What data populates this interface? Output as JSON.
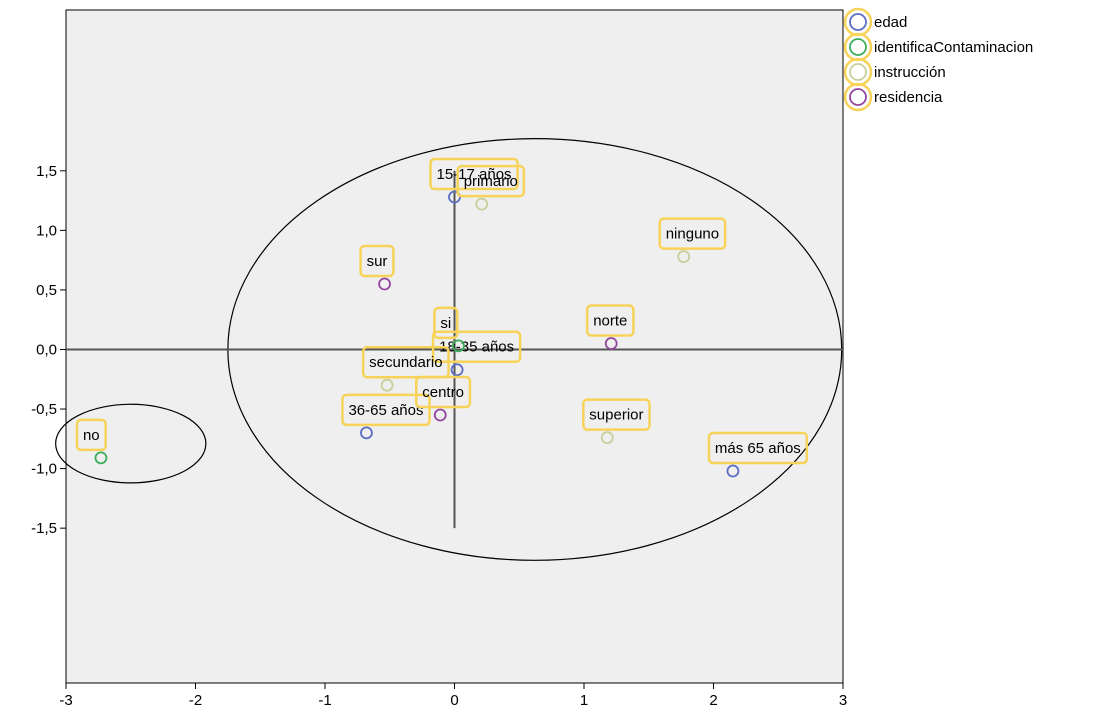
{
  "chart_data": {
    "type": "scatter",
    "title": "",
    "xlabel": "",
    "ylabel": "",
    "xlim": [
      -3,
      3
    ],
    "ylim": [
      -2.8,
      2.85
    ],
    "xticks": [
      -3,
      -2,
      -1,
      0,
      1,
      2,
      3
    ],
    "xtick_labels": [
      "-3",
      "-2",
      "-1",
      "0",
      "1",
      "2",
      "3"
    ],
    "yticks": [
      1.5,
      1.0,
      0.5,
      0.0,
      -0.5,
      -1.0,
      -1.5
    ],
    "ytick_labels": [
      "1,5",
      "1,0",
      "0,5",
      "0,0",
      "-0,5",
      "-1,0",
      "-1,5"
    ],
    "grid": false,
    "legend_position": "top-right",
    "colors": {
      "edad": "#5b6cc4",
      "identificaContaminacion": "#3cae5c",
      "instruccion": "#c8cf9c",
      "residencia": "#93489f",
      "label_border": "#f7d35a",
      "plot_background": "#efefef"
    },
    "series": [
      {
        "name": "edad",
        "points": [
          {
            "label": "15-17 años",
            "x": 0.0,
            "y": 1.28
          },
          {
            "label": "18-35 años",
            "x": 0.02,
            "y": -0.17
          },
          {
            "label": "36-65 años",
            "x": -0.68,
            "y": -0.7
          },
          {
            "label": "más 65 años",
            "x": 2.15,
            "y": -1.02
          }
        ]
      },
      {
        "name": "identificaContaminacion",
        "points": [
          {
            "label": "si",
            "x": 0.03,
            "y": 0.03
          },
          {
            "label": "no",
            "x": -2.73,
            "y": -0.91
          }
        ]
      },
      {
        "name": "instrucción",
        "points": [
          {
            "label": "primario",
            "x": 0.21,
            "y": 1.22
          },
          {
            "label": "ninguno",
            "x": 1.77,
            "y": 0.78
          },
          {
            "label": "secundario",
            "x": -0.52,
            "y": -0.3
          },
          {
            "label": "superior",
            "x": 1.18,
            "y": -0.74
          }
        ]
      },
      {
        "name": "residencia",
        "points": [
          {
            "label": "sur",
            "x": -0.54,
            "y": 0.55
          },
          {
            "label": "norte",
            "x": 1.21,
            "y": 0.05
          },
          {
            "label": "centro",
            "x": -0.11,
            "y": -0.55
          }
        ]
      }
    ],
    "annotations": [
      {
        "shape": "ellipse",
        "cx": 0.62,
        "cy": 0.0,
        "rx": 2.37,
        "ry": 1.77
      },
      {
        "shape": "ellipse",
        "cx": -2.5,
        "cy": -0.79,
        "rx": 0.58,
        "ry": 0.33
      }
    ],
    "reference_lines": [
      {
        "orientation": "horizontal",
        "value": 0,
        "from": -3,
        "to": 3
      },
      {
        "orientation": "vertical",
        "value": 0,
        "from": -1.5,
        "to": 1.5
      }
    ]
  }
}
